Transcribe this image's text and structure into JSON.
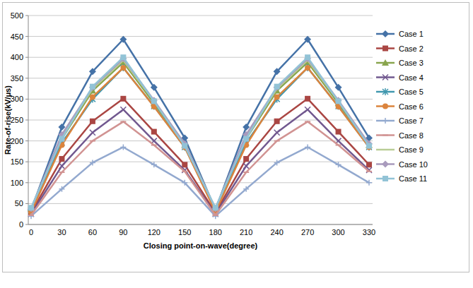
{
  "chart_data": {
    "type": "line",
    "x_label": "Closing point-on-wave(degree)",
    "y_label": "Rate-of-rise(kV/μs)",
    "categories": [
      "0",
      "30",
      "60",
      "90",
      "120",
      "150",
      "180",
      "210",
      "240",
      "270",
      "300",
      "330"
    ],
    "ylim": [
      0,
      500
    ],
    "yticks": [
      0,
      50,
      100,
      150,
      200,
      250,
      300,
      350,
      400,
      450,
      500
    ],
    "grid": true,
    "legend": "right",
    "series": [
      {
        "name": "Case 1",
        "color": "#4572A7",
        "marker": "diamond",
        "values": [
          35,
          233,
          366,
          443,
          328,
          207,
          35,
          233,
          366,
          443,
          328,
          207
        ]
      },
      {
        "name": "Case 2",
        "color": "#AA4643",
        "marker": "square",
        "values": [
          28,
          157,
          247,
          301,
          222,
          143,
          28,
          157,
          247,
          301,
          222,
          143
        ]
      },
      {
        "name": "Case 3",
        "color": "#89A54E",
        "marker": "triangle",
        "values": [
          38,
          205,
          320,
          388,
          290,
          190,
          38,
          205,
          320,
          388,
          290,
          190
        ]
      },
      {
        "name": "Case 4",
        "color": "#71588F",
        "marker": "x",
        "values": [
          25,
          140,
          220,
          275,
          200,
          130,
          25,
          140,
          220,
          275,
          200,
          130
        ]
      },
      {
        "name": "Case 5",
        "color": "#4198AF",
        "marker": "star",
        "values": [
          35,
          195,
          300,
          375,
          283,
          185,
          35,
          195,
          300,
          375,
          283,
          185
        ]
      },
      {
        "name": "Case 6",
        "color": "#DB843D",
        "marker": "circle",
        "values": [
          30,
          190,
          305,
          375,
          282,
          185,
          30,
          190,
          305,
          375,
          282,
          185
        ]
      },
      {
        "name": "Case 7",
        "color": "#93A9CF",
        "marker": "plus",
        "values": [
          20,
          85,
          148,
          185,
          143,
          100,
          20,
          85,
          148,
          185,
          143,
          100
        ]
      },
      {
        "name": "Case 8",
        "color": "#D19392",
        "marker": "dash",
        "values": [
          22,
          125,
          200,
          246,
          190,
          127,
          22,
          125,
          200,
          246,
          190,
          127
        ]
      },
      {
        "name": "Case 9",
        "color": "#B9CD96",
        "marker": "none",
        "values": [
          38,
          210,
          325,
          393,
          295,
          192,
          38,
          210,
          325,
          393,
          295,
          192
        ]
      },
      {
        "name": "Case 10",
        "color": "#A99BBD",
        "marker": "diamond",
        "values": [
          38,
          215,
          328,
          397,
          297,
          193,
          38,
          215,
          328,
          397,
          297,
          193
        ]
      },
      {
        "name": "Case 11",
        "color": "#92C3D6",
        "marker": "square",
        "values": [
          40,
          205,
          330,
          400,
          295,
          188,
          40,
          205,
          330,
          400,
          295,
          188
        ]
      }
    ]
  }
}
